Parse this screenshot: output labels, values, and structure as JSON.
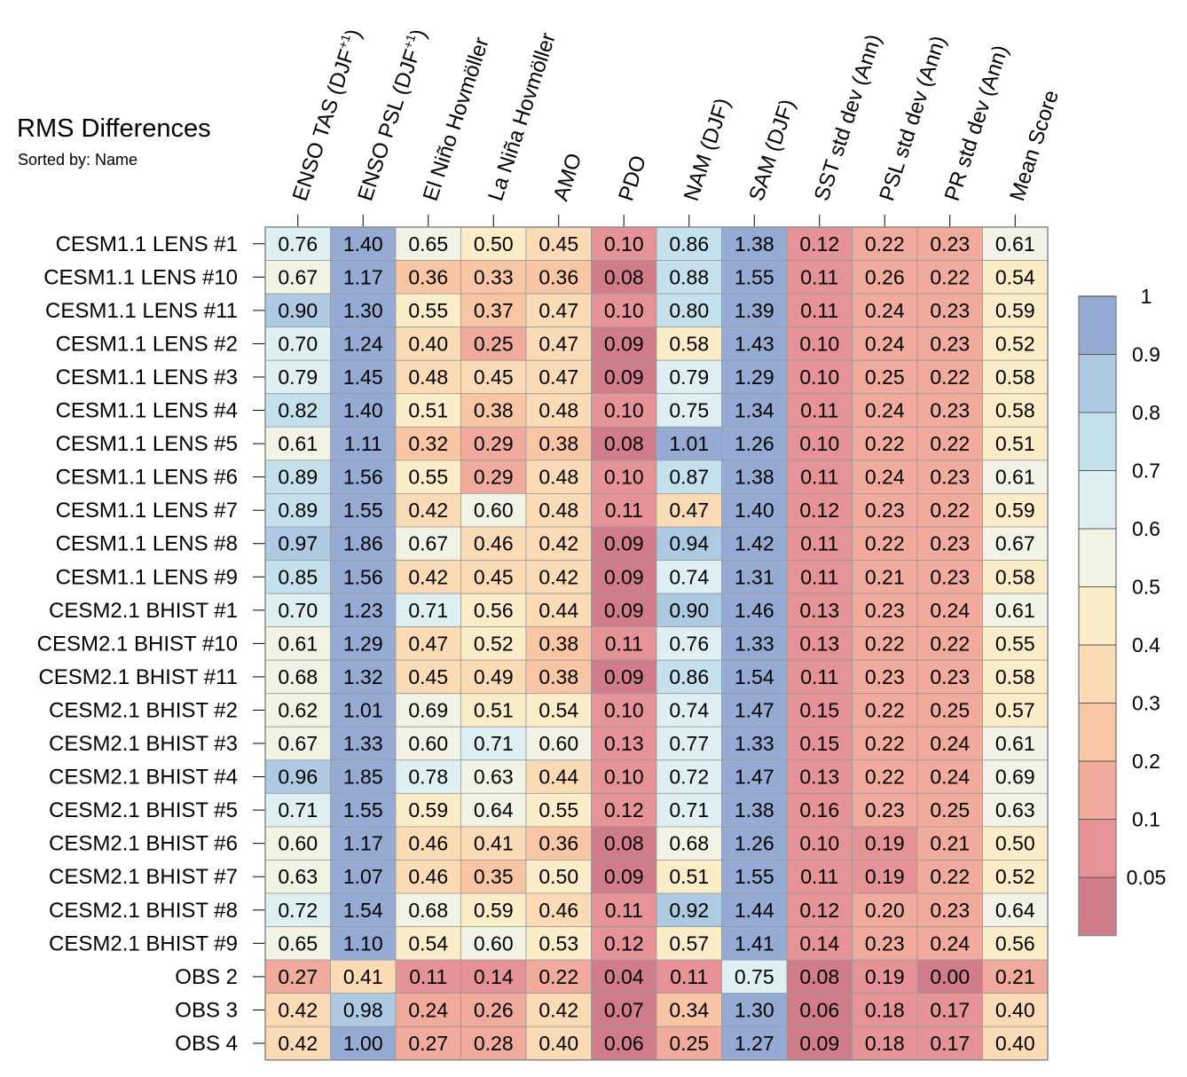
{
  "title": "RMS Differences",
  "subtitle": "Sorted by: Name",
  "chart_data": {
    "type": "heatmap",
    "title": "RMS Differences",
    "subtitle": "Sorted by: Name",
    "columns": [
      "ENSO TAS (DJF+1)",
      "ENSO PSL (DJF+1)",
      "El Niño Hovmöller",
      "La Niña Hovmöller",
      "AMO",
      "PDO",
      "NAM (DJF)",
      "SAM (DJF)",
      "SST std dev (Ann)",
      "PSL std dev (Ann)",
      "PR std dev (Ann)",
      "Mean Score"
    ],
    "rows": [
      "CESM1.1 LENS #1",
      "CESM1.1 LENS #10",
      "CESM1.1 LENS #11",
      "CESM1.1 LENS #2",
      "CESM1.1 LENS #3",
      "CESM1.1 LENS #4",
      "CESM1.1 LENS #5",
      "CESM1.1 LENS #6",
      "CESM1.1 LENS #7",
      "CESM1.1 LENS #8",
      "CESM1.1 LENS #9",
      "CESM2.1 BHIST #1",
      "CESM2.1 BHIST #10",
      "CESM2.1 BHIST #11",
      "CESM2.1 BHIST #2",
      "CESM2.1 BHIST #3",
      "CESM2.1 BHIST #4",
      "CESM2.1 BHIST #5",
      "CESM2.1 BHIST #6",
      "CESM2.1 BHIST #7",
      "CESM2.1 BHIST #8",
      "CESM2.1 BHIST #9",
      "OBS 2",
      "OBS 3",
      "OBS 4"
    ],
    "values": [
      [
        "0.76",
        "1.40",
        "0.65",
        "0.50",
        "0.45",
        "0.10",
        "0.86",
        "1.38",
        "0.12",
        "0.22",
        "0.23",
        "0.61"
      ],
      [
        "0.67",
        "1.17",
        "0.36",
        "0.33",
        "0.36",
        "0.08",
        "0.88",
        "1.55",
        "0.11",
        "0.26",
        "0.22",
        "0.54"
      ],
      [
        "0.90",
        "1.30",
        "0.55",
        "0.37",
        "0.47",
        "0.10",
        "0.80",
        "1.39",
        "0.11",
        "0.24",
        "0.23",
        "0.59"
      ],
      [
        "0.70",
        "1.24",
        "0.40",
        "0.25",
        "0.47",
        "0.09",
        "0.58",
        "1.43",
        "0.10",
        "0.24",
        "0.23",
        "0.52"
      ],
      [
        "0.79",
        "1.45",
        "0.48",
        "0.45",
        "0.47",
        "0.09",
        "0.79",
        "1.29",
        "0.10",
        "0.25",
        "0.22",
        "0.58"
      ],
      [
        "0.82",
        "1.40",
        "0.51",
        "0.38",
        "0.48",
        "0.10",
        "0.75",
        "1.34",
        "0.11",
        "0.24",
        "0.23",
        "0.58"
      ],
      [
        "0.61",
        "1.11",
        "0.32",
        "0.29",
        "0.38",
        "0.08",
        "1.01",
        "1.26",
        "0.10",
        "0.22",
        "0.22",
        "0.51"
      ],
      [
        "0.89",
        "1.56",
        "0.55",
        "0.29",
        "0.48",
        "0.10",
        "0.87",
        "1.38",
        "0.11",
        "0.24",
        "0.23",
        "0.61"
      ],
      [
        "0.89",
        "1.55",
        "0.42",
        "0.60",
        "0.48",
        "0.11",
        "0.47",
        "1.40",
        "0.12",
        "0.23",
        "0.22",
        "0.59"
      ],
      [
        "0.97",
        "1.86",
        "0.67",
        "0.46",
        "0.42",
        "0.09",
        "0.94",
        "1.42",
        "0.11",
        "0.22",
        "0.23",
        "0.67"
      ],
      [
        "0.85",
        "1.56",
        "0.42",
        "0.45",
        "0.42",
        "0.09",
        "0.74",
        "1.31",
        "0.11",
        "0.21",
        "0.23",
        "0.58"
      ],
      [
        "0.70",
        "1.23",
        "0.71",
        "0.56",
        "0.44",
        "0.09",
        "0.90",
        "1.46",
        "0.13",
        "0.23",
        "0.24",
        "0.61"
      ],
      [
        "0.61",
        "1.29",
        "0.47",
        "0.52",
        "0.38",
        "0.11",
        "0.76",
        "1.33",
        "0.13",
        "0.22",
        "0.22",
        "0.55"
      ],
      [
        "0.68",
        "1.32",
        "0.45",
        "0.49",
        "0.38",
        "0.09",
        "0.86",
        "1.54",
        "0.11",
        "0.23",
        "0.23",
        "0.58"
      ],
      [
        "0.62",
        "1.01",
        "0.69",
        "0.51",
        "0.54",
        "0.10",
        "0.74",
        "1.47",
        "0.15",
        "0.22",
        "0.25",
        "0.57"
      ],
      [
        "0.67",
        "1.33",
        "0.60",
        "0.71",
        "0.60",
        "0.13",
        "0.77",
        "1.33",
        "0.15",
        "0.22",
        "0.24",
        "0.61"
      ],
      [
        "0.96",
        "1.85",
        "0.78",
        "0.63",
        "0.44",
        "0.10",
        "0.72",
        "1.47",
        "0.13",
        "0.22",
        "0.24",
        "0.69"
      ],
      [
        "0.71",
        "1.55",
        "0.59",
        "0.64",
        "0.55",
        "0.12",
        "0.71",
        "1.38",
        "0.16",
        "0.23",
        "0.25",
        "0.63"
      ],
      [
        "0.60",
        "1.17",
        "0.46",
        "0.41",
        "0.36",
        "0.08",
        "0.68",
        "1.26",
        "0.10",
        "0.19",
        "0.21",
        "0.50"
      ],
      [
        "0.63",
        "1.07",
        "0.46",
        "0.35",
        "0.50",
        "0.09",
        "0.51",
        "1.55",
        "0.11",
        "0.19",
        "0.22",
        "0.52"
      ],
      [
        "0.72",
        "1.54",
        "0.68",
        "0.59",
        "0.46",
        "0.11",
        "0.92",
        "1.44",
        "0.12",
        "0.20",
        "0.23",
        "0.64"
      ],
      [
        "0.65",
        "1.10",
        "0.54",
        "0.60",
        "0.53",
        "0.12",
        "0.57",
        "1.41",
        "0.14",
        "0.23",
        "0.24",
        "0.56"
      ],
      [
        "0.27",
        "0.41",
        "0.11",
        "0.14",
        "0.22",
        "0.04",
        "0.11",
        "0.75",
        "0.08",
        "0.19",
        "0.00",
        "0.21"
      ],
      [
        "0.42",
        "0.98",
        "0.24",
        "0.26",
        "0.42",
        "0.07",
        "0.34",
        "1.30",
        "0.06",
        "0.18",
        "0.17",
        "0.40"
      ],
      [
        "0.42",
        "1.00",
        "0.27",
        "0.28",
        "0.40",
        "0.06",
        "0.25",
        "1.27",
        "0.09",
        "0.18",
        "0.17",
        "0.40"
      ]
    ],
    "colorbar": {
      "ticks": [
        "0.05",
        "0.1",
        "0.2",
        "0.3",
        "0.4",
        "0.5",
        "0.6",
        "0.7",
        "0.8",
        "0.9",
        "1"
      ],
      "boundaries": [
        0.05,
        0.1,
        0.2,
        0.3,
        0.4,
        0.5,
        0.6,
        0.7,
        0.8,
        0.9,
        1
      ],
      "colors": [
        "#d17d89",
        "#e59396",
        "#f0ab9d",
        "#f8c6a4",
        "#fbdbb5",
        "#fcedc9",
        "#f2f2e5",
        "#def0f4",
        "#c5e1ee",
        "#aecae3",
        "#95abd3"
      ]
    }
  }
}
